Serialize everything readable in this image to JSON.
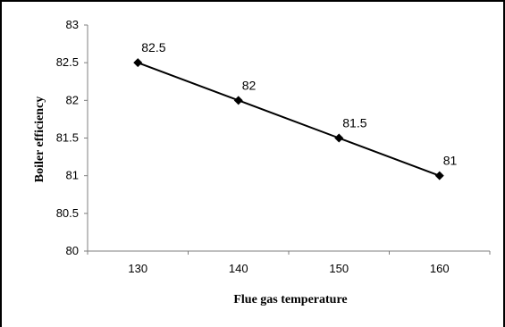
{
  "chart_data": {
    "type": "line",
    "title": "",
    "xlabel": "Flue gas temperature",
    "ylabel": "Boiler efficiency",
    "x": [
      130,
      140,
      150,
      160
    ],
    "series": [
      {
        "values": [
          82.5,
          82,
          81.5,
          81
        ],
        "color": "#000000",
        "marker": "diamond"
      }
    ],
    "data_labels": [
      "82.5",
      "82",
      "81.5",
      "81"
    ],
    "x_ticks": [
      "130",
      "140",
      "150",
      "160"
    ],
    "y_ticks": [
      "80",
      "80.5",
      "81",
      "81.5",
      "82",
      "82.5",
      "83"
    ],
    "xlim": [
      125,
      165
    ],
    "ylim": [
      80,
      83
    ],
    "grid": false,
    "legend": "none"
  }
}
